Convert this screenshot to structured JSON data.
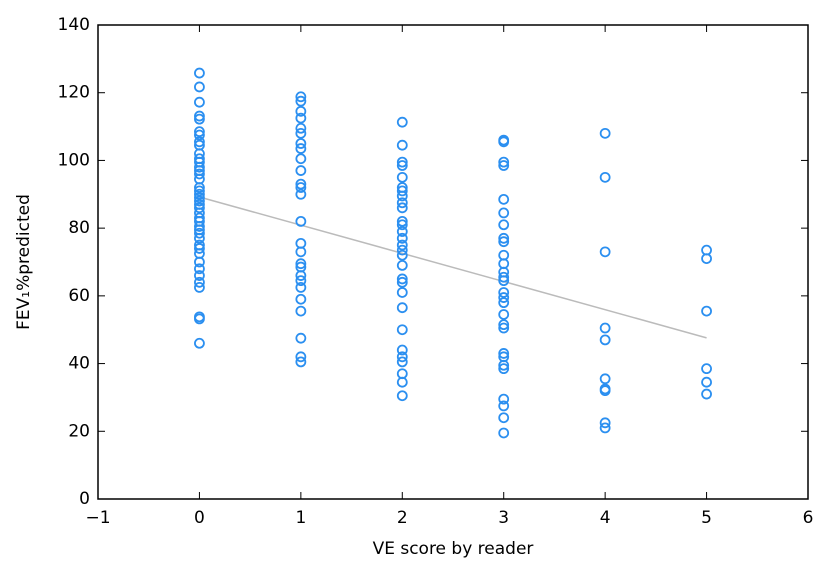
{
  "chart_data": {
    "type": "scatter",
    "x_label": "VE score by reader",
    "y_label": "FEV₁%predicted",
    "xlim": [
      -1,
      6
    ],
    "xticks": [
      {
        "value": -1,
        "label": "−1"
      },
      0,
      1,
      2,
      3,
      4,
      5,
      6
    ],
    "ylim": [
      0,
      140
    ],
    "yticks": [
      0,
      20,
      40,
      60,
      80,
      100,
      120,
      140
    ],
    "grid": false,
    "series": [
      {
        "color": "#2b8ff0",
        "x": [
          0,
          0,
          0,
          0,
          0,
          0,
          0,
          0,
          0,
          0,
          0,
          0,
          0,
          0,
          0,
          0,
          0,
          0,
          0,
          0,
          0,
          0,
          0,
          0,
          0,
          0,
          0,
          0,
          0,
          0,
          0,
          0,
          0,
          0,
          0,
          0,
          0,
          0,
          0,
          0,
          0,
          1,
          1,
          1,
          1,
          1,
          1,
          1,
          1,
          1,
          1,
          1,
          1,
          1,
          1,
          1,
          1,
          1,
          1,
          1,
          1,
          1,
          1,
          1,
          1,
          1,
          1,
          2,
          2,
          2,
          2,
          2,
          2,
          2,
          2,
          2,
          2,
          2,
          2,
          2,
          2,
          2,
          2,
          2,
          2,
          2,
          2,
          2,
          2,
          2,
          2,
          2,
          2,
          2,
          2,
          2,
          3,
          3,
          3,
          3,
          3,
          3,
          3,
          3,
          3,
          3,
          3,
          3,
          3,
          3,
          3,
          3,
          3,
          3,
          3,
          3,
          3,
          3,
          3,
          3,
          3,
          3,
          3,
          3,
          4,
          4,
          4,
          4,
          4,
          4,
          4,
          4,
          4,
          4,
          5,
          5,
          5,
          5,
          5,
          5
        ],
        "values": [
          125.8,
          121.7,
          117.2,
          113.1,
          112.2,
          108.5,
          107.5,
          105.5,
          104.5,
          102,
          100.5,
          99.5,
          98,
          97,
          96,
          94.5,
          92,
          91,
          90,
          89,
          88,
          87,
          86,
          84.5,
          83,
          82,
          80.5,
          79.5,
          78.5,
          77,
          75,
          74,
          72.5,
          70,
          68,
          66,
          64,
          62.5,
          53.8,
          53.2,
          46,
          118.8,
          117.5,
          114.5,
          112.5,
          109.5,
          108,
          105,
          103.5,
          100.5,
          97,
          93,
          92,
          90,
          82,
          75.5,
          73,
          69.5,
          68.5,
          66,
          64.5,
          62.5,
          59,
          55.5,
          47.5,
          42,
          40.5,
          111.3,
          104.5,
          99.5,
          98.5,
          95,
          92,
          91,
          89.5,
          87.5,
          86,
          82,
          81,
          79,
          77,
          75,
          73.5,
          72,
          69,
          65,
          64,
          61,
          56.5,
          50,
          44,
          42,
          40.5,
          37,
          34.5,
          30.5,
          106,
          105.5,
          99.5,
          98.5,
          88.5,
          84.5,
          81,
          77,
          76,
          72,
          69.5,
          67,
          65.5,
          64.5,
          61,
          59.5,
          58,
          54.5,
          51.5,
          50.5,
          43,
          42,
          39.5,
          38.5,
          29.5,
          27.5,
          24,
          19.5,
          108,
          95,
          73,
          50.5,
          47,
          35.5,
          32.5,
          32,
          22.5,
          21,
          73.5,
          71,
          55.5,
          38.5,
          34.5,
          31
        ]
      }
    ],
    "trend_line": {
      "color": "#bbbbbb",
      "x": [
        0,
        5
      ],
      "values": [
        89.2,
        47.6
      ]
    }
  }
}
